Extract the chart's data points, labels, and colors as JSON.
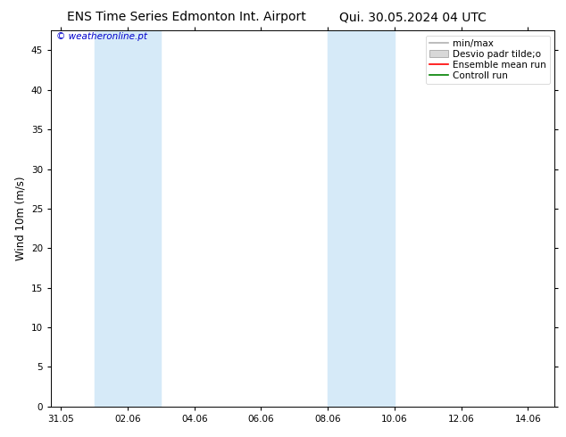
{
  "title_left": "ENS Time Series Edmonton Int. Airport",
  "title_right": "Qui. 30.05.2024 04 UTC",
  "ylabel": "Wind 10m (m/s)",
  "watermark": "© weatheronline.pt",
  "watermark_color": "#0000cc",
  "ylim": [
    0,
    47.5
  ],
  "yticks": [
    0,
    5,
    10,
    15,
    20,
    25,
    30,
    35,
    40,
    45
  ],
  "xtick_labels": [
    "31.05",
    "02.06",
    "04.06",
    "06.06",
    "08.06",
    "10.06",
    "12.06",
    "14.06"
  ],
  "xtick_positions": [
    0,
    2,
    4,
    6,
    8,
    10,
    12,
    14
  ],
  "xlim": [
    -0.3,
    14.8
  ],
  "shade_bands": [
    {
      "xmin": 1.0,
      "xmax": 3.0
    },
    {
      "xmin": 8.0,
      "xmax": 10.0
    }
  ],
  "shade_color": "#d6eaf8",
  "bg_color": "#ffffff",
  "legend_entries": [
    {
      "label": "min/max",
      "color": "#b0b0b0",
      "lw": 1.2,
      "type": "line"
    },
    {
      "label": "Desvio padr tilde;o",
      "color": "#d8d8d8",
      "type": "patch"
    },
    {
      "label": "Ensemble mean run",
      "color": "#ff0000",
      "lw": 1.2,
      "type": "line"
    },
    {
      "label": "Controll run",
      "color": "#008000",
      "lw": 1.2,
      "type": "line"
    }
  ],
  "title_fontsize": 10,
  "axis_fontsize": 8.5,
  "tick_fontsize": 7.5,
  "legend_fontsize": 7.5,
  "watermark_fontsize": 7.5
}
